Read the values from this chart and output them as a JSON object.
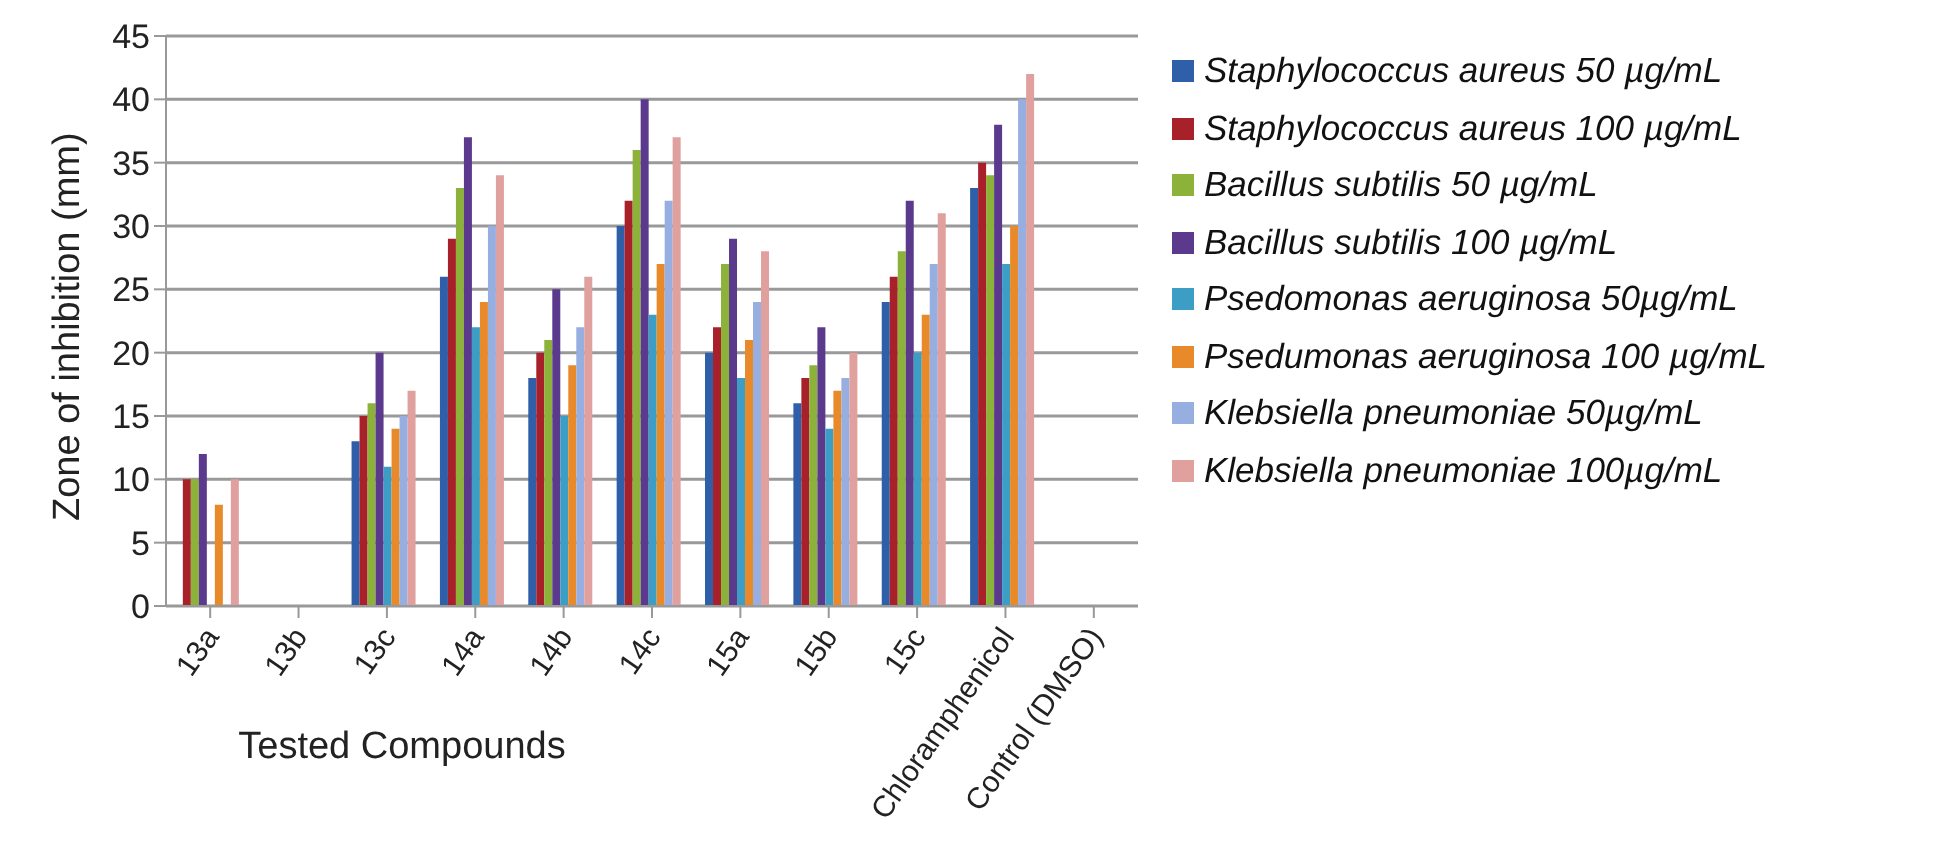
{
  "chart_data": {
    "type": "bar",
    "xlabel": "Tested Compounds",
    "ylabel": "Zone of inhibition (mm)",
    "categories": [
      "13a",
      "13b",
      "13c",
      "14a",
      "14b",
      "14c",
      "15a",
      "15b",
      "15c",
      "Chloramphenicol",
      "Control (DMSO)"
    ],
    "series": [
      {
        "name": "Staphylococcus aureus 50 µg/mL",
        "color": "#2e5fa8",
        "values": [
          0,
          0,
          13,
          26,
          18,
          30,
          20,
          16,
          24,
          33,
          0
        ]
      },
      {
        "name": "Staphylococcus aureus 100 µg/mL",
        "color": "#a8202a",
        "values": [
          10,
          0,
          15,
          29,
          20,
          32,
          22,
          18,
          26,
          35,
          0
        ]
      },
      {
        "name": "Bacillus subtilis 50 µg/mL",
        "color": "#8cb23a",
        "values": [
          10,
          0,
          16,
          33,
          21,
          36,
          27,
          19,
          28,
          34,
          0
        ]
      },
      {
        "name": "Bacillus subtilis 100 µg/mL",
        "color": "#5b3a8e",
        "values": [
          12,
          0,
          20,
          37,
          25,
          40,
          29,
          22,
          32,
          38,
          0
        ]
      },
      {
        "name": "Psedomonas aeruginosa 50µg/mL",
        "color": "#3c9ec4",
        "values": [
          0,
          0,
          11,
          22,
          15,
          23,
          18,
          14,
          20,
          27,
          0
        ]
      },
      {
        "name": "Psedumonas aeruginosa 100 µg/mL",
        "color": "#e8892a",
        "values": [
          8,
          0,
          14,
          24,
          19,
          27,
          21,
          17,
          23,
          30,
          0
        ]
      },
      {
        "name": "Klebsiella pneumoniae 50µg/mL",
        "color": "#97aee0",
        "values": [
          0,
          0,
          15,
          30,
          22,
          32,
          24,
          18,
          27,
          40,
          0
        ]
      },
      {
        "name": "Klebsiella pneumoniae 100µg/mL",
        "color": "#e0a09e",
        "values": [
          10,
          0,
          17,
          34,
          26,
          37,
          28,
          20,
          31,
          42,
          0
        ]
      }
    ],
    "ylim": [
      0,
      45
    ],
    "yticks": [
      0,
      5,
      10,
      15,
      20,
      25,
      30,
      35,
      40,
      45
    ],
    "grid": "y",
    "legend": "right"
  }
}
